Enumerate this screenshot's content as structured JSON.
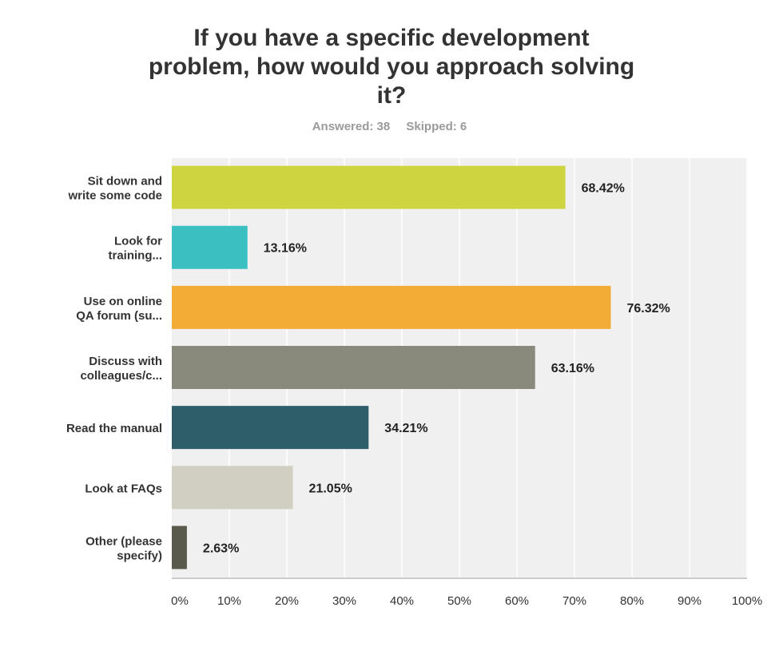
{
  "title_lines": [
    "If you have a specific development",
    "problem, how would you approach solving",
    "it?"
  ],
  "answered": "Answered: 38",
  "skipped": "Skipped: 6",
  "chart_data": {
    "type": "bar",
    "orientation": "horizontal",
    "categories": [
      [
        "Sit down and",
        "write some code"
      ],
      [
        "Look for",
        "training..."
      ],
      [
        "Use on online",
        "QA forum (su..."
      ],
      [
        "Discuss with",
        "colleagues/c..."
      ],
      [
        "Read the manual"
      ],
      [
        "Look at FAQs"
      ],
      [
        "Other (please",
        "specify)"
      ]
    ],
    "values": [
      68.42,
      13.16,
      76.32,
      63.16,
      34.21,
      21.05,
      2.63
    ],
    "value_labels": [
      "68.42%",
      "13.16%",
      "76.32%",
      "63.16%",
      "34.21%",
      "21.05%",
      "2.63%"
    ],
    "colors": [
      "#cdd43f",
      "#3bbfc0",
      "#f3ac35",
      "#898a7b",
      "#2e5e6a",
      "#d0cfc2",
      "#5a5a4c"
    ],
    "xlim": [
      0,
      100
    ],
    "ticks": [
      "0%",
      "10%",
      "20%",
      "30%",
      "40%",
      "50%",
      "60%",
      "70%",
      "80%",
      "90%",
      "100%"
    ],
    "grid": true,
    "background": "#f0f0f0",
    "gridline_color": "#ffffff"
  }
}
